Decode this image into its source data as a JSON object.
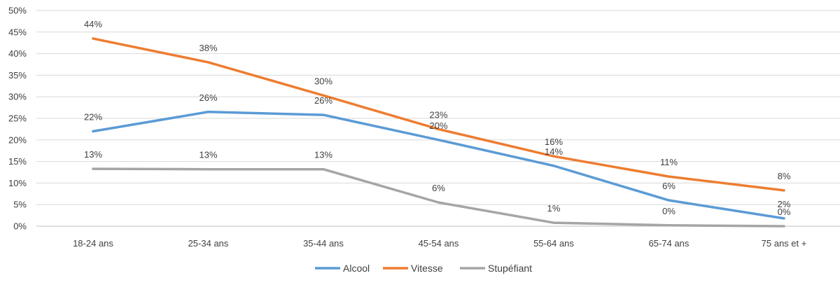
{
  "chart_data": {
    "type": "line",
    "categories": [
      "18-24 ans",
      "25-34 ans",
      "35-44 ans",
      "45-54 ans",
      "55-64 ans",
      "65-74 ans",
      "75 ans et +"
    ],
    "series": [
      {
        "name": "Alcool",
        "color": "#5b9bd5",
        "values": [
          22,
          26.5,
          25.8,
          20,
          14,
          6,
          1.8
        ],
        "labels": [
          "22%",
          "26%",
          "26%",
          "20%",
          "14%",
          "6%",
          "2%"
        ]
      },
      {
        "name": "Vitesse",
        "color": "#ed7d31",
        "values": [
          43.5,
          38,
          30.3,
          22.5,
          16.2,
          11.5,
          8.3
        ],
        "labels": [
          "44%",
          "38%",
          "30%",
          "23%",
          "16%",
          "11%",
          "8%"
        ]
      },
      {
        "name": "Stupéfiant",
        "color": "#a5a5a5",
        "values": [
          13.3,
          13.2,
          13.2,
          5.5,
          0.8,
          0.2,
          0
        ],
        "labels": [
          "13%",
          "13%",
          "13%",
          "6%",
          "1%",
          "0%",
          "0%"
        ]
      }
    ],
    "ylim": [
      0,
      50
    ],
    "yticks": [
      0,
      5,
      10,
      15,
      20,
      25,
      30,
      35,
      40,
      45,
      50
    ],
    "ytick_labels": [
      "0%",
      "5%",
      "10%",
      "15%",
      "20%",
      "25%",
      "30%",
      "35%",
      "40%",
      "45%",
      "50%"
    ],
    "grid": true,
    "legend": "bottom-center"
  }
}
